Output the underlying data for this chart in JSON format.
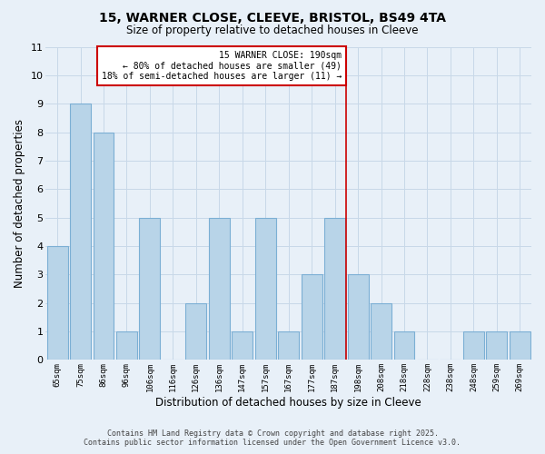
{
  "title": "15, WARNER CLOSE, CLEEVE, BRISTOL, BS49 4TA",
  "subtitle": "Size of property relative to detached houses in Cleeve",
  "xlabel": "Distribution of detached houses by size in Cleeve",
  "ylabel": "Number of detached properties",
  "categories": [
    "65sqm",
    "75sqm",
    "86sqm",
    "96sqm",
    "106sqm",
    "116sqm",
    "126sqm",
    "136sqm",
    "147sqm",
    "157sqm",
    "167sqm",
    "177sqm",
    "187sqm",
    "198sqm",
    "208sqm",
    "218sqm",
    "228sqm",
    "238sqm",
    "248sqm",
    "259sqm",
    "269sqm"
  ],
  "values": [
    4,
    9,
    8,
    1,
    5,
    0,
    2,
    5,
    1,
    5,
    1,
    3,
    5,
    3,
    2,
    1,
    0,
    0,
    1,
    1,
    1
  ],
  "bar_color": "#b8d4e8",
  "bar_edgecolor": "#7bafd4",
  "grid_color": "#c8d8e8",
  "background_color": "#e8f0f8",
  "reference_line_x": 12.5,
  "reference_line_color": "#cc0000",
  "ylim": [
    0,
    11
  ],
  "yticks": [
    0,
    1,
    2,
    3,
    4,
    5,
    6,
    7,
    8,
    9,
    10,
    11
  ],
  "annotation_title": "15 WARNER CLOSE: 190sqm",
  "annotation_line1": "← 80% of detached houses are smaller (49)",
  "annotation_line2": "18% of semi-detached houses are larger (11) →",
  "footer_line1": "Contains HM Land Registry data © Crown copyright and database right 2025.",
  "footer_line2": "Contains public sector information licensed under the Open Government Licence v3.0."
}
